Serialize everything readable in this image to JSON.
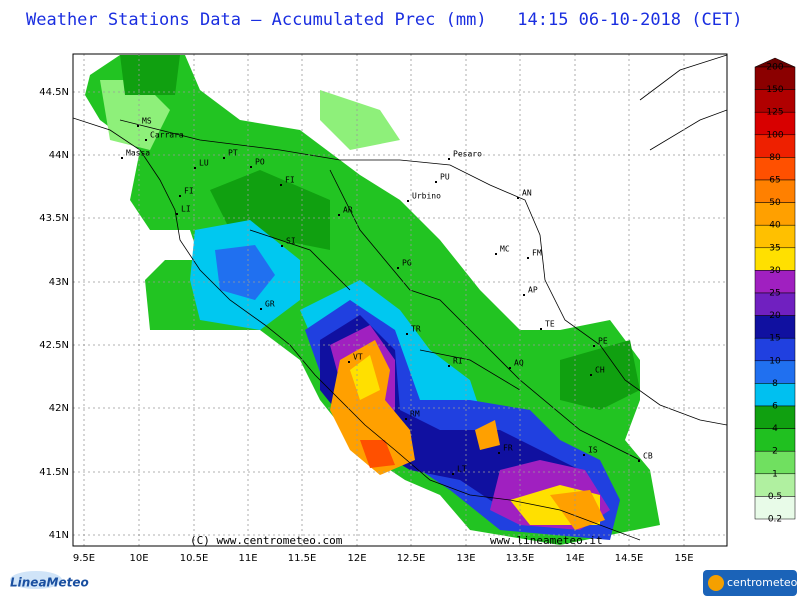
{
  "header": {
    "title": "Weather Stations Data — Accumulated Prec (mm)   14:15 06-10-2018 (CET)"
  },
  "map": {
    "lon_labels": [
      "9.5E",
      "10E",
      "10.5E",
      "11E",
      "11.5E",
      "12E",
      "12.5E",
      "13E",
      "13.5E",
      "14E",
      "14.5E",
      "15E"
    ],
    "lat_labels": [
      "44.5N",
      "44N",
      "43.5N",
      "43N",
      "42.5N",
      "42N",
      "41.5N",
      "41N"
    ],
    "cities": [
      "MS",
      "Carrara",
      "Massa",
      "LU",
      "PT",
      "PO",
      "FI",
      "FI",
      "LI",
      "SI",
      "AR",
      "GR",
      "Pesaro",
      "PU",
      "Urbino",
      "AN",
      "MC",
      "FM",
      "AP",
      "TE",
      "PG",
      "TR",
      "VT",
      "RI",
      "AQ",
      "PE",
      "CH",
      "RM",
      "LT",
      "FR",
      "IS",
      "CB"
    ],
    "credits": [
      "(C) www.centrometeo.com",
      "www.lineameteo.it"
    ]
  },
  "legend": {
    "labels": [
      "200",
      "150",
      "125",
      "100",
      "80",
      "65",
      "50",
      "40",
      "35",
      "30",
      "25",
      "20",
      "15",
      "10",
      "8",
      "6",
      "4",
      "2",
      "1",
      "0.5",
      "0.2"
    ]
  },
  "logos": {
    "left": "LineaMeteo",
    "right": "centrometeo"
  }
}
